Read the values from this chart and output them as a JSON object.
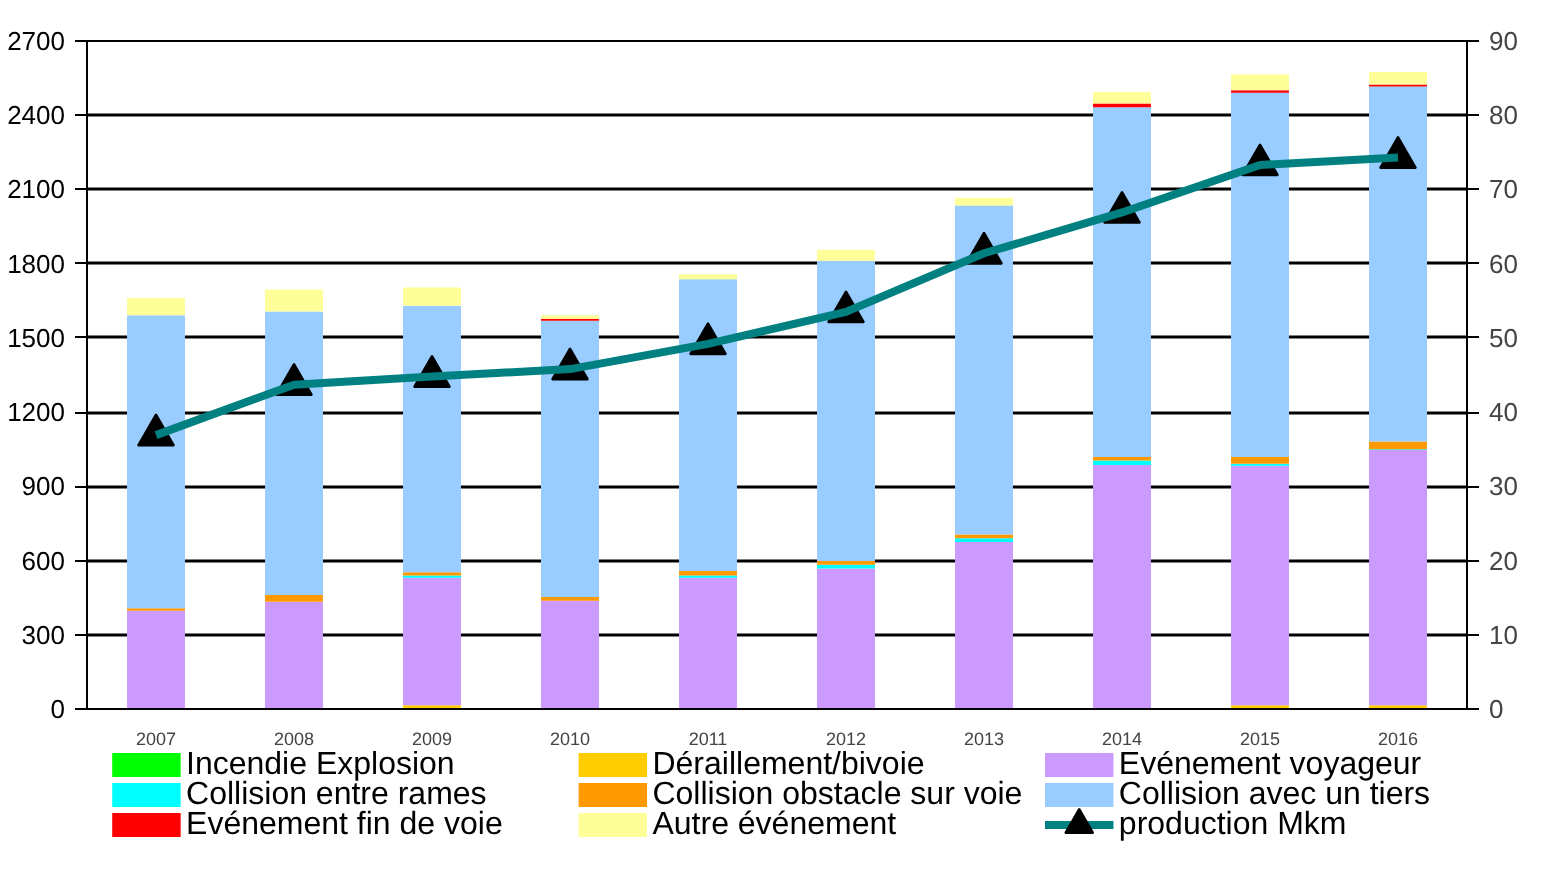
{
  "chart_data": {
    "type": "bar",
    "stacked": true,
    "categories": [
      "2007",
      "2008",
      "2009",
      "2010",
      "2011",
      "2012",
      "2013",
      "2014",
      "2015",
      "2016"
    ],
    "series": [
      {
        "name": "Incendie Explosion",
        "color": "#00ff00",
        "values": [
          0,
          0,
          0,
          0,
          0,
          0,
          0,
          0,
          0,
          0
        ]
      },
      {
        "name": "Déraillement/bivoie",
        "color": "#ffcc00",
        "values": [
          0,
          0,
          15,
          0,
          0,
          0,
          0,
          0,
          15,
          15
        ]
      },
      {
        "name": "Evénement voyageur",
        "color": "#cc99ff",
        "values": [
          397,
          433,
          515,
          438,
          530,
          568,
          675,
          986,
          968,
          1032
        ]
      },
      {
        "name": "Collision entre rames",
        "color": "#00ffff",
        "values": [
          0,
          0,
          10,
          0,
          10,
          15,
          15,
          18,
          8,
          3
        ]
      },
      {
        "name": "Collision obstacle sur voie",
        "color": "#ff9900",
        "values": [
          10,
          28,
          13,
          15,
          18,
          15,
          15,
          15,
          28,
          31
        ]
      },
      {
        "name": "Collision avec un tiers",
        "color": "#99ccff",
        "values": [
          1185,
          1146,
          1077,
          1116,
          1179,
          1214,
          1330,
          1413,
          1472,
          1435
        ]
      },
      {
        "name": "Evénement fin de voie",
        "color": "#ff0000",
        "values": [
          0,
          0,
          0,
          8,
          0,
          0,
          0,
          15,
          10,
          8
        ]
      },
      {
        "name": "Autre événement",
        "color": "#ffff99",
        "values": [
          69,
          89,
          74,
          15,
          20,
          44,
          31,
          47,
          64,
          51
        ]
      },
      {
        "name": "production  Mkm",
        "type": "line",
        "axis": "y2",
        "color": "#008080",
        "marker": "triangle",
        "values": [
          36.9,
          43.7,
          44.8,
          45.8,
          49.2,
          53.5,
          61.4,
          66.9,
          73.3,
          74.3
        ]
      }
    ],
    "ylim": [
      0,
      2700
    ],
    "yticks": [
      0,
      300,
      600,
      900,
      1200,
      1500,
      1800,
      2100,
      2400,
      2700
    ],
    "y2lim": [
      0,
      90
    ],
    "y2ticks": [
      0,
      10,
      20,
      30,
      40,
      50,
      60,
      70,
      80,
      90
    ],
    "grid": "y",
    "legend": "bottom"
  }
}
